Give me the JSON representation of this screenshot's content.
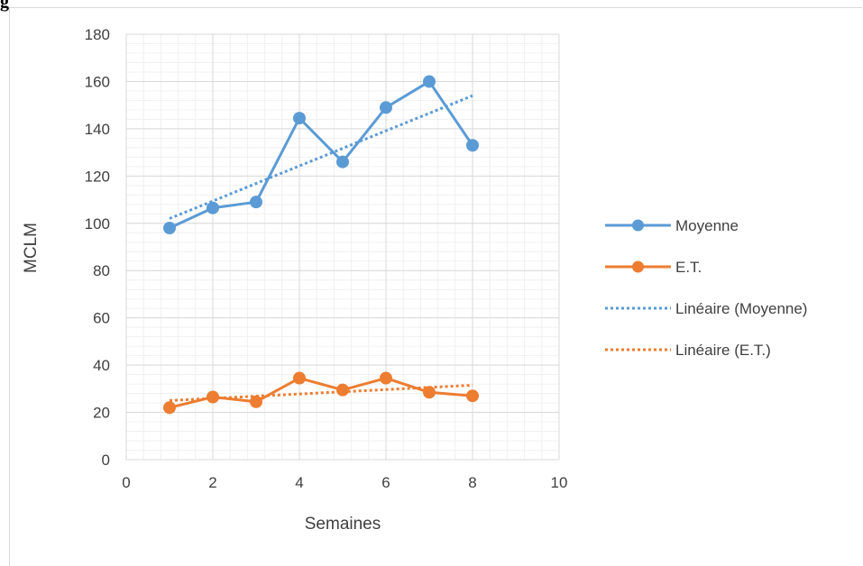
{
  "corner_label": "g",
  "chart_data": {
    "type": "line",
    "title": "",
    "xlabel": "Semaines",
    "ylabel": "MCLM",
    "xlim": [
      0,
      10
    ],
    "ylim": [
      0,
      180
    ],
    "x_ticks": [
      0,
      2,
      4,
      6,
      8,
      10
    ],
    "y_ticks": [
      0,
      20,
      40,
      60,
      80,
      100,
      120,
      140,
      160,
      180
    ],
    "grid": "major and minor",
    "legend_position": "right",
    "series": [
      {
        "name": "Moyenne",
        "color": "#5b9bd5",
        "x": [
          1,
          2,
          3,
          4,
          5,
          6,
          7,
          8
        ],
        "y": [
          98,
          106.5,
          109,
          144.5,
          126,
          149,
          160,
          133
        ]
      },
      {
        "name": "E.T.",
        "color": "#ed7d31",
        "x": [
          1,
          2,
          3,
          4,
          5,
          6,
          7,
          8
        ],
        "y": [
          22,
          26.5,
          24.5,
          34.5,
          29.5,
          34.5,
          28.5,
          27
        ]
      }
    ],
    "trendlines": [
      {
        "name": "Linéaire (Moyenne)",
        "color": "#5b9bd5",
        "style": "dotted",
        "x": [
          1,
          8
        ],
        "y": [
          102,
          154
        ]
      },
      {
        "name": "Linéaire (E.T.)",
        "color": "#ed7d31",
        "style": "dotted",
        "x": [
          1,
          8
        ],
        "y": [
          25,
          31.5
        ]
      }
    ]
  }
}
